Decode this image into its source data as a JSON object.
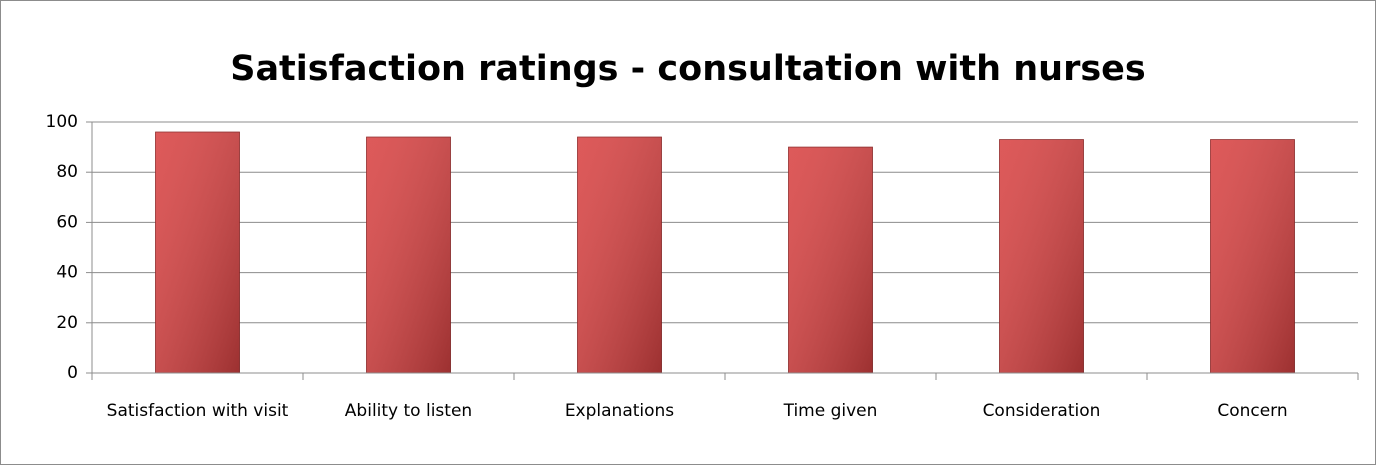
{
  "chart_data": {
    "type": "bar",
    "title": "Satisfaction ratings - consultation with nurses",
    "categories": [
      "Satisfaction with visit",
      "Ability to listen",
      "Explanations",
      "Time given",
      "Consideration",
      "Concern"
    ],
    "values": [
      96,
      94,
      94,
      90,
      93,
      93
    ],
    "color": "#d94343",
    "ylim": [
      0,
      100
    ],
    "yticks": [
      0,
      20,
      40,
      60,
      80,
      100
    ],
    "grid": true
  }
}
